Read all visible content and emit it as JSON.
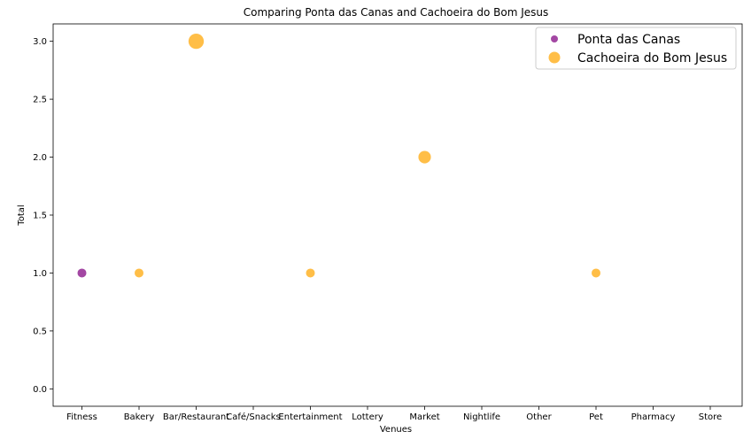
{
  "chart_data": {
    "type": "scatter",
    "title": "Comparing Ponta das Canas and Cachoeira do Bom Jesus",
    "xlabel": "Venues",
    "ylabel": "Total",
    "categories": [
      "Fitness",
      "Bakery",
      "Bar/Restaurant",
      "Café/Snacks",
      "Entertainment",
      "Lottery",
      "Market",
      "Nightlife",
      "Other",
      "Pet",
      "Pharmacy",
      "Store"
    ],
    "ylim": [
      -0.15,
      3.15
    ],
    "yticks": [
      0.0,
      0.5,
      1.0,
      1.5,
      2.0,
      2.5,
      3.0
    ],
    "ytick_labels": [
      "0.0",
      "0.5",
      "1.0",
      "1.5",
      "2.0",
      "2.5",
      "3.0"
    ],
    "marker_size_encodes": "value",
    "grid": false,
    "legend_position": "top-right",
    "series": [
      {
        "name": "Ponta das Canas",
        "color": "#800080",
        "points": [
          {
            "x": "Fitness",
            "y": 1
          }
        ]
      },
      {
        "name": "Cachoeira do Bom Jesus",
        "color": "#FFA500",
        "points": [
          {
            "x": "Bakery",
            "y": 1
          },
          {
            "x": "Bar/Restaurant",
            "y": 3
          },
          {
            "x": "Entertainment",
            "y": 1
          },
          {
            "x": "Market",
            "y": 2
          },
          {
            "x": "Pet",
            "y": 1
          }
        ]
      }
    ]
  }
}
